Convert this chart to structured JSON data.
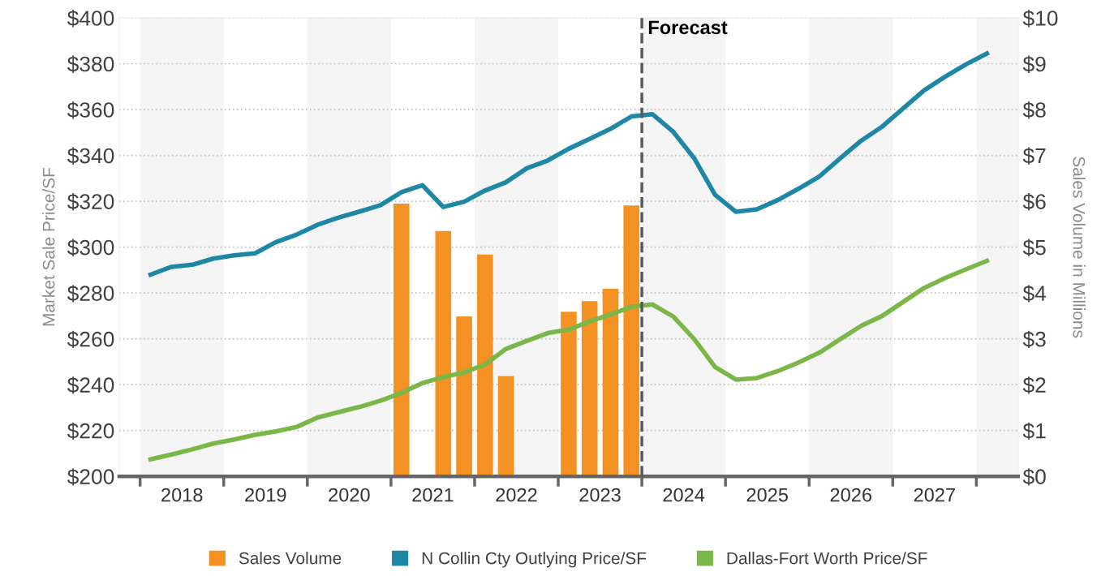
{
  "chart_data": {
    "type": "line",
    "xlabel": null,
    "ylabel": "Market Sale Price/SF",
    "y2label": "Sales Volume in Millions",
    "xlim": [
      2017.75,
      2028.5
    ],
    "xticks": [
      {
        "value": 2018,
        "label": null
      },
      {
        "value": 2018.5,
        "label": "2018"
      },
      {
        "value": 2019,
        "label": null
      },
      {
        "value": 2019.5,
        "label": "2019"
      },
      {
        "value": 2020,
        "label": null
      },
      {
        "value": 2020.5,
        "label": "2020"
      },
      {
        "value": 2021,
        "label": null
      },
      {
        "value": 2021.5,
        "label": "2021"
      },
      {
        "value": 2022,
        "label": null
      },
      {
        "value": 2022.5,
        "label": "2022"
      },
      {
        "value": 2023,
        "label": null
      },
      {
        "value": 2023.5,
        "label": "2023"
      },
      {
        "value": 2024,
        "label": null
      },
      {
        "value": 2024.5,
        "label": "2024"
      },
      {
        "value": 2025,
        "label": null
      },
      {
        "value": 2025.5,
        "label": "2025"
      },
      {
        "value": 2026,
        "label": null
      },
      {
        "value": 2026.5,
        "label": "2026"
      },
      {
        "value": 2027,
        "label": null
      },
      {
        "value": 2027.5,
        "label": "2027"
      },
      {
        "value": 2028,
        "label": null
      }
    ],
    "ylim": [
      200,
      400
    ],
    "yticks": [
      {
        "value": 200,
        "label": "$200"
      },
      {
        "value": 220,
        "label": "$220"
      },
      {
        "value": 240,
        "label": "$240"
      },
      {
        "value": 260,
        "label": "$260"
      },
      {
        "value": 280,
        "label": "$280"
      },
      {
        "value": 300,
        "label": "$300"
      },
      {
        "value": 320,
        "label": "$320"
      },
      {
        "value": 340,
        "label": "$340"
      },
      {
        "value": 360,
        "label": "$360"
      },
      {
        "value": 380,
        "label": "$380"
      },
      {
        "value": 400,
        "label": "$400"
      }
    ],
    "y2lim": [
      0,
      10
    ],
    "y2ticks": [
      {
        "value": 0,
        "label": "$0"
      },
      {
        "value": 1,
        "label": "$1"
      },
      {
        "value": 2,
        "label": "$2"
      },
      {
        "value": 3,
        "label": "$3"
      },
      {
        "value": 4,
        "label": "$4"
      },
      {
        "value": 5,
        "label": "$5"
      },
      {
        "value": 6,
        "label": "$6"
      },
      {
        "value": 7,
        "label": "$7"
      },
      {
        "value": 8,
        "label": "$8"
      },
      {
        "value": 9,
        "label": "$9"
      },
      {
        "value": 10,
        "label": "$10"
      }
    ],
    "x": [
      2018.125,
      2018.375,
      2018.625,
      2018.875,
      2019.125,
      2019.375,
      2019.625,
      2019.875,
      2020.125,
      2020.375,
      2020.625,
      2020.875,
      2021.125,
      2021.375,
      2021.625,
      2021.875,
      2022.125,
      2022.375,
      2022.625,
      2022.875,
      2023.125,
      2023.375,
      2023.625,
      2023.875,
      2024.125,
      2024.375,
      2024.625,
      2024.875,
      2025.125,
      2025.375,
      2025.625,
      2025.875,
      2026.125,
      2026.375,
      2026.625,
      2026.875,
      2027.125,
      2027.375,
      2027.625,
      2027.875,
      2028.125
    ],
    "series": [
      {
        "name": "Sales Volume",
        "type": "bar",
        "axis": "y2",
        "color": "#f39122",
        "x": [
          2021.125,
          2021.625,
          2021.875,
          2022.125,
          2022.375,
          2023.125,
          2023.375,
          2023.625,
          2023.875
        ],
        "values": [
          5.95,
          5.35,
          3.49,
          4.84,
          2.19,
          3.59,
          3.82,
          4.09,
          5.91
        ]
      },
      {
        "name": "N Collin Cty Outlying Price/SF",
        "color": "#1f87a6",
        "values": [
          288,
          291.4,
          292.3,
          295,
          296.4,
          297.3,
          302.2,
          305.5,
          309.8,
          312.9,
          315.5,
          318.3,
          324,
          327,
          317.5,
          319.8,
          324.7,
          328.3,
          334.4,
          337.8,
          342.9,
          347.2,
          351.6,
          357,
          358,
          350.3,
          338.8,
          322.8,
          315.4,
          316.5,
          320.5,
          325.5,
          330.9,
          338.8,
          346.5,
          352.6,
          360.5,
          368.4,
          374.3,
          379.7,
          384.4
        ]
      },
      {
        "name": "Dallas-Fort Worth Price/SF",
        "color": "#7ab648",
        "values": [
          207.4,
          209.5,
          211.8,
          214.3,
          216.1,
          218.1,
          219.6,
          221.6,
          225.7,
          228,
          230.3,
          233,
          236.4,
          240.7,
          243.3,
          245.3,
          248.8,
          255.6,
          259.1,
          262.5,
          264,
          267.6,
          270.6,
          274,
          275,
          269.7,
          259.9,
          247.7,
          242.2,
          242.9,
          245.9,
          249.7,
          254,
          259.9,
          265.7,
          270,
          276.1,
          282.2,
          286.5,
          290.3,
          294
        ]
      }
    ],
    "ref_lines": [
      {
        "axis": "x",
        "value": 2024,
        "label": "Forecast",
        "color": "#595959",
        "line_style": "dashed"
      }
    ],
    "bands": [
      {
        "axis": "x",
        "from": 2018,
        "to": 2019,
        "color": "#f5f5f5"
      },
      {
        "axis": "x",
        "from": 2020,
        "to": 2021,
        "color": "#f5f5f5"
      },
      {
        "axis": "x",
        "from": 2022,
        "to": 2023,
        "color": "#f5f5f5"
      },
      {
        "axis": "x",
        "from": 2024,
        "to": 2025,
        "color": "#f5f5f5"
      },
      {
        "axis": "x",
        "from": 2026,
        "to": 2027,
        "color": "#f5f5f5"
      },
      {
        "axis": "x",
        "from": 2028,
        "to": 2028.5,
        "color": "#f5f5f5"
      }
    ],
    "grid": "y",
    "legend": "bottom",
    "marker": "none",
    "line_style": "solid"
  }
}
